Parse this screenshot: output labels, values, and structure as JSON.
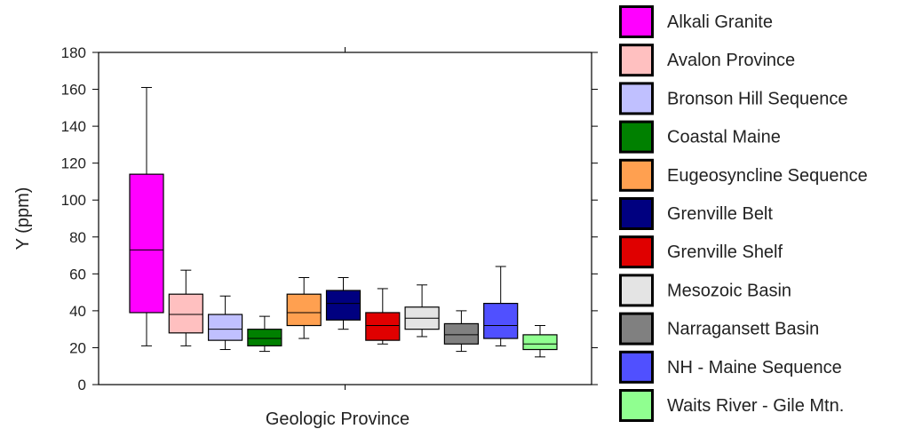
{
  "chart_data": {
    "type": "box",
    "title": "",
    "xlabel": "Geologic Province",
    "ylabel": "Y (ppm)",
    "ylim": [
      0,
      180
    ],
    "yticks": [
      0,
      20,
      40,
      60,
      80,
      100,
      120,
      140,
      160,
      180
    ],
    "legend_position": "right",
    "grid": false,
    "series": [
      {
        "name": "Alkali Granite",
        "color": "#ff00ff",
        "min": 21,
        "q1": 39,
        "median": 73,
        "q3": 114,
        "max": 161
      },
      {
        "name": "Avalon Province",
        "color": "#ffc0c0",
        "min": 21,
        "q1": 28,
        "median": 38,
        "q3": 49,
        "max": 62
      },
      {
        "name": "Bronson Hill Sequence",
        "color": "#c0c0ff",
        "min": 19,
        "q1": 24,
        "median": 30,
        "q3": 38,
        "max": 48
      },
      {
        "name": "Coastal Maine",
        "color": "#008000",
        "min": 18,
        "q1": 21,
        "median": 25,
        "q3": 30,
        "max": 37
      },
      {
        "name": "Eugeosyncline Sequence",
        "color": "#ffa050",
        "min": 25,
        "q1": 32,
        "median": 39,
        "q3": 49,
        "max": 58
      },
      {
        "name": "Grenville Belt",
        "color": "#000080",
        "min": 30,
        "q1": 35,
        "median": 44,
        "q3": 51,
        "max": 58
      },
      {
        "name": "Grenville Shelf",
        "color": "#e00000",
        "min": 22,
        "q1": 24,
        "median": 32,
        "q3": 39,
        "max": 52
      },
      {
        "name": "Mesozoic Basin",
        "color": "#e4e4e4",
        "min": 26,
        "q1": 30,
        "median": 36,
        "q3": 42,
        "max": 54
      },
      {
        "name": "Narragansett Basin",
        "color": "#808080",
        "min": 18,
        "q1": 22,
        "median": 27,
        "q3": 33,
        "max": 40
      },
      {
        "name": "NH - Maine Sequence",
        "color": "#5050ff",
        "min": 21,
        "q1": 25,
        "median": 32,
        "q3": 44,
        "max": 64
      },
      {
        "name": "Waits River - Gile Mtn.",
        "color": "#90ff90",
        "min": 15,
        "q1": 19,
        "median": 22,
        "q3": 27,
        "max": 32
      }
    ]
  }
}
